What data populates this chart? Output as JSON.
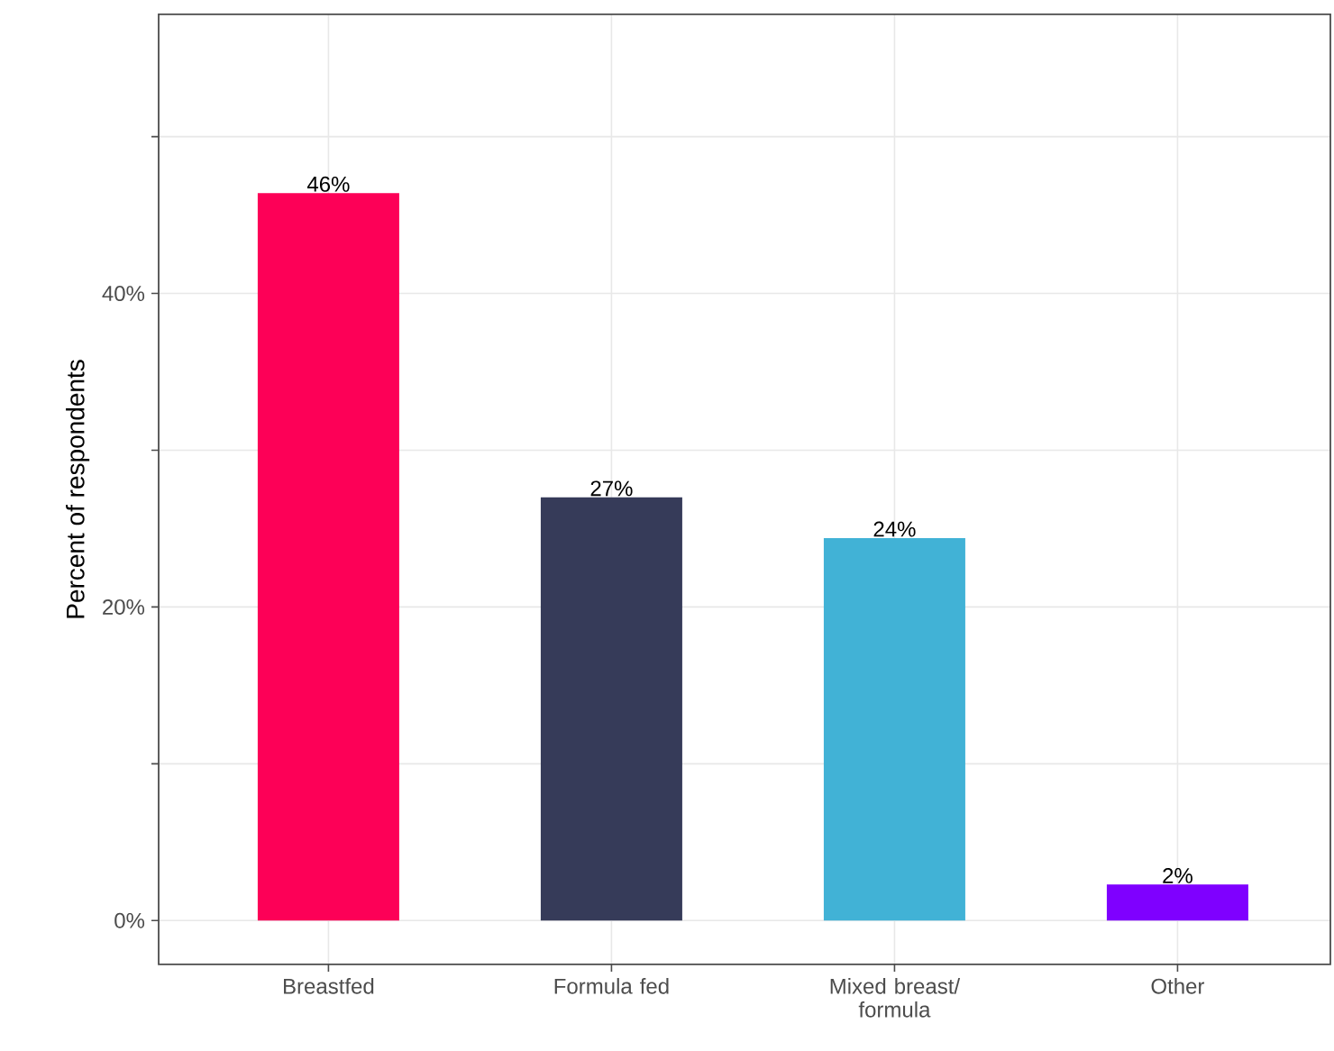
{
  "chart_data": {
    "type": "bar",
    "ylabel": "Percent of respondents",
    "categories": [
      "Breastfed",
      "Formula fed",
      "Mixed breast/ formula",
      "Other"
    ],
    "values": [
      46.4,
      27,
      24.4,
      2.3
    ],
    "colors": [
      "#fd0057",
      "#363b59",
      "#41b2d6",
      "#7f00ff"
    ],
    "value_labels": [
      "46%",
      "27%",
      "24%",
      "2%"
    ],
    "ylim": [
      -2.8,
      57.8
    ],
    "yticks": [
      {
        "value": 0,
        "label": "0%"
      },
      {
        "value": 10,
        "label": null
      },
      {
        "value": 20,
        "label": "20%"
      },
      {
        "value": 30,
        "label": null
      },
      {
        "value": 40,
        "label": "40%"
      },
      {
        "value": 50,
        "label": null
      }
    ],
    "grid": true
  }
}
